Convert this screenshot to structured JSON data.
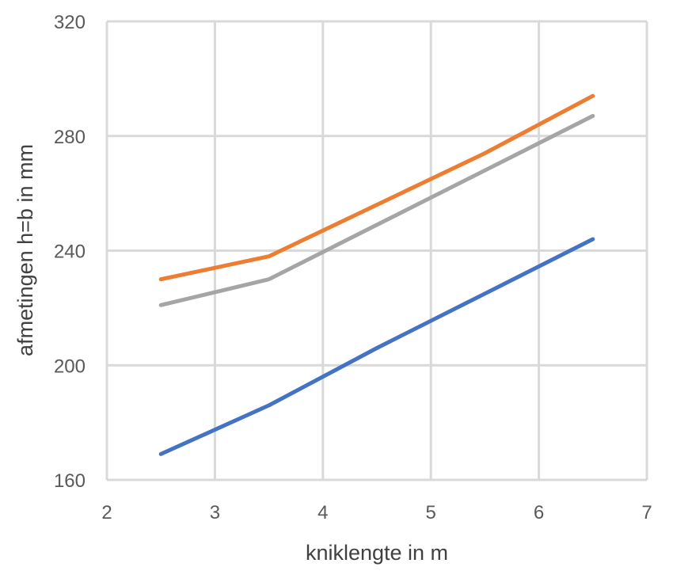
{
  "chart_data": {
    "type": "line",
    "title": "",
    "xlabel": "kniklengte in m",
    "ylabel": "afmetingen h=b in mm",
    "xlim": [
      2,
      7
    ],
    "ylim": [
      160,
      320
    ],
    "x_ticks": [
      2,
      3,
      4,
      5,
      6,
      7
    ],
    "y_ticks": [
      160,
      200,
      240,
      280,
      320
    ],
    "grid": true,
    "legend": "none",
    "series": [
      {
        "color": "#4472c4",
        "x": [
          2.5,
          3.5,
          4.5,
          5.5,
          6.5
        ],
        "y": [
          169,
          186,
          206,
          225,
          244
        ]
      },
      {
        "color": "#ed7d31",
        "x": [
          2.5,
          3.5,
          4.5,
          5.5,
          6.5
        ],
        "y": [
          230,
          238,
          256,
          274,
          294
        ]
      },
      {
        "color": "#a5a5a5",
        "x": [
          2.5,
          3.5,
          4.5,
          5.5,
          6.5
        ],
        "y": [
          221,
          230,
          249,
          268,
          287
        ]
      }
    ]
  }
}
